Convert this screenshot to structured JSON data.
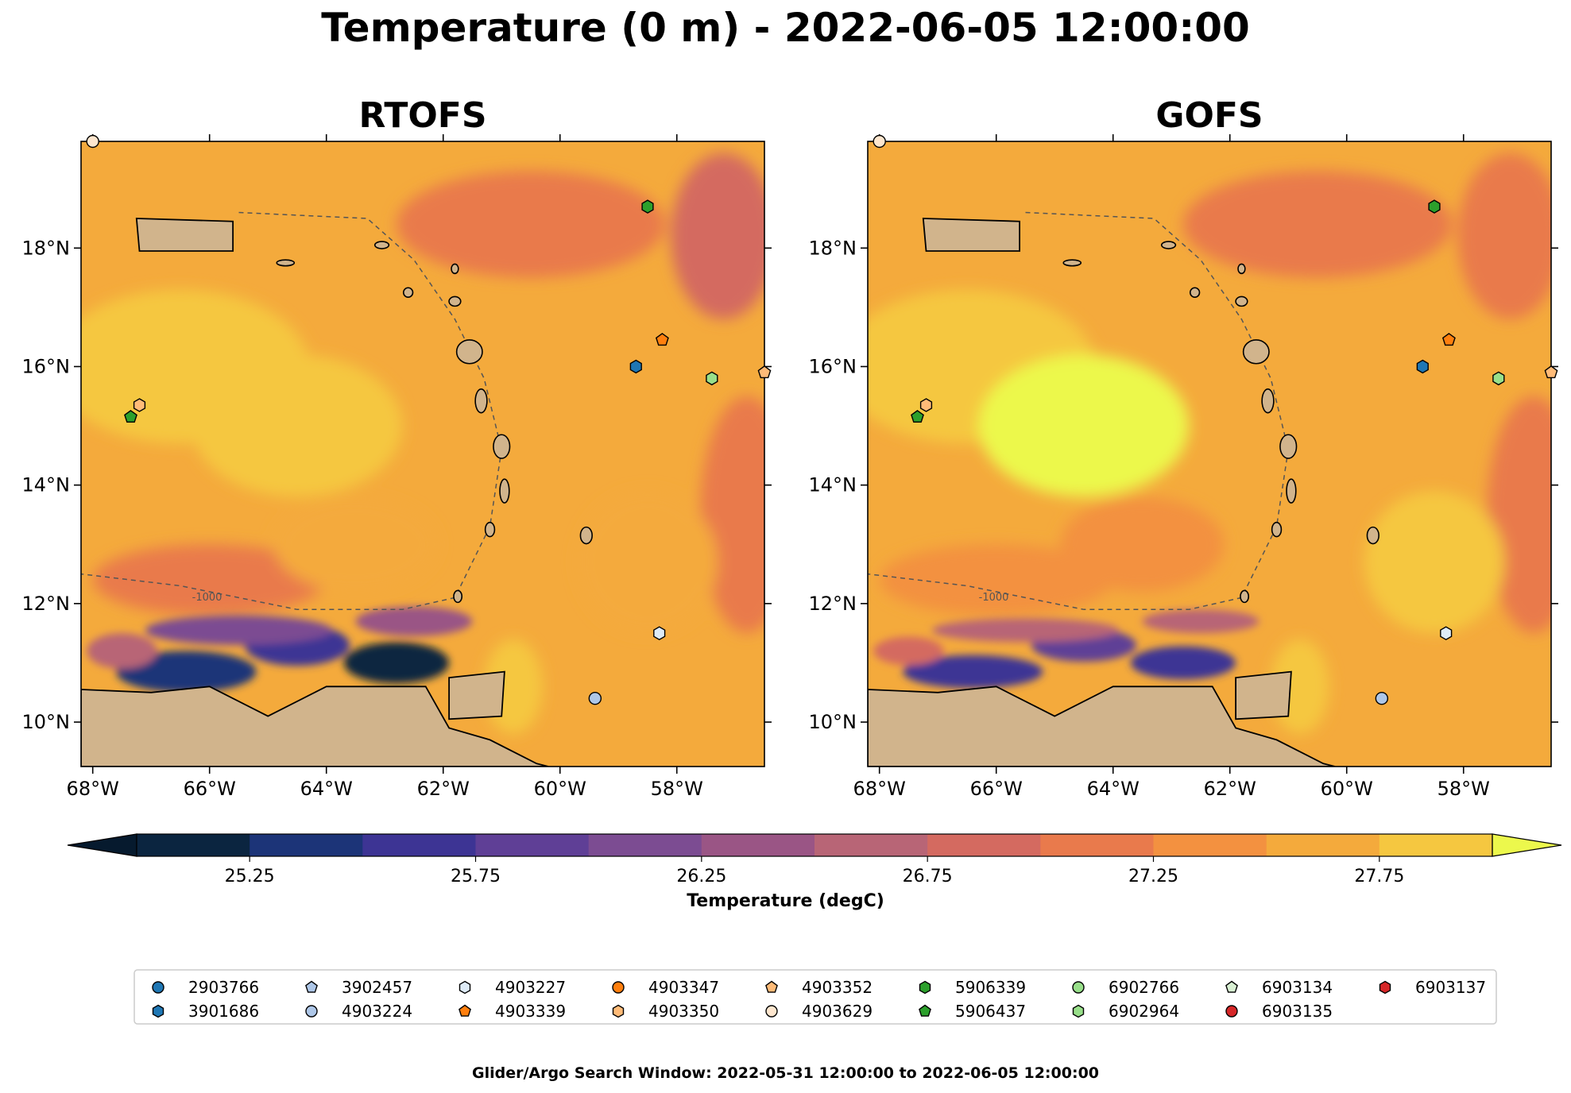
{
  "figure": {
    "suptitle": "Temperature (0 m) - 2022-06-05 12:00:00",
    "footer": "Glider/Argo Search Window: 2022-05-31 12:00:00 to 2022-06-05 12:00:00"
  },
  "chart_data": {
    "type": "heatmap",
    "panels": [
      {
        "title": "RTOFS",
        "xlim": [
          -68.2,
          -56.5
        ],
        "ylim": [
          9.25,
          19.8
        ],
        "xticks": [
          "68°W",
          "66°W",
          "64°W",
          "62°W",
          "60°W",
          "58°W"
        ],
        "xtick_values": [
          -68,
          -66,
          -64,
          -62,
          -60,
          -58
        ],
        "yticks": [
          "10°N",
          "12°N",
          "14°N",
          "16°N",
          "18°N"
        ],
        "ytick_values": [
          10,
          12,
          14,
          16,
          18
        ]
      },
      {
        "title": "GOFS",
        "xlim": [
          -68.2,
          -56.5
        ],
        "ylim": [
          9.25,
          19.8
        ],
        "xticks": [
          "68°W",
          "66°W",
          "64°W",
          "62°W",
          "60°W",
          "58°W"
        ],
        "xtick_values": [
          -68,
          -66,
          -64,
          -62,
          -60,
          -58
        ],
        "yticks": [
          "10°N",
          "12°N",
          "14°N",
          "16°N",
          "18°N"
        ],
        "ytick_values": [
          10,
          12,
          14,
          16,
          18
        ]
      }
    ],
    "bathymetry_contour_label": "-1000",
    "colorbar": {
      "label": "Temperature (degC)",
      "range": [
        25.0,
        28.0
      ],
      "step": 0.25,
      "extend": "both",
      "ticks": [
        "25.25",
        "25.75",
        "26.25",
        "26.75",
        "27.25",
        "27.75"
      ],
      "tick_values": [
        25.25,
        25.75,
        26.25,
        26.75,
        27.25,
        27.75
      ],
      "colors": [
        "#0b2540",
        "#1c3478",
        "#3d3494",
        "#5f3f96",
        "#7c4c92",
        "#9a5585",
        "#b86576",
        "#d46a60",
        "#e97a4c",
        "#f39140",
        "#f4aa3c",
        "#f5c740"
      ],
      "under_color": "#061a2e",
      "over_color": "#ecf84c"
    },
    "floats": [
      {
        "id": "2903766",
        "color": "#1f77b4",
        "marker": "circle",
        "lon": null,
        "lat": null
      },
      {
        "id": "3901686",
        "color": "#1f77b4",
        "marker": "hexagon",
        "lon": -58.7,
        "lat": 16.0
      },
      {
        "id": "3902457",
        "color": "#aec7e8",
        "marker": "pentagon",
        "lon": null,
        "lat": null
      },
      {
        "id": "4903224",
        "color": "#aec7e8",
        "marker": "circle",
        "lon": -59.4,
        "lat": 10.4
      },
      {
        "id": "4903227",
        "color": "#deebf7",
        "marker": "hexagon",
        "lon": -58.3,
        "lat": 11.5
      },
      {
        "id": "4903339",
        "color": "#ff7f0e",
        "marker": "pentagon",
        "lon": -58.25,
        "lat": 16.45
      },
      {
        "id": "4903347",
        "color": "#ff7f0e",
        "marker": "circle",
        "lon": null,
        "lat": null
      },
      {
        "id": "4903350",
        "color": "#ffbb78",
        "marker": "hexagon",
        "lon": -67.2,
        "lat": 15.35
      },
      {
        "id": "4903352",
        "color": "#ffbb78",
        "marker": "pentagon",
        "lon": -56.5,
        "lat": 15.9
      },
      {
        "id": "4903629",
        "color": "#fee6ce",
        "marker": "circle",
        "lon": -68.0,
        "lat": 19.8
      },
      {
        "id": "5906339",
        "color": "#2ca02c",
        "marker": "hexagon",
        "lon": -58.5,
        "lat": 18.7
      },
      {
        "id": "5906437",
        "color": "#2ca02c",
        "marker": "pentagon",
        "lon": -67.35,
        "lat": 15.15
      },
      {
        "id": "6902766",
        "color": "#98df8a",
        "marker": "circle",
        "lon": null,
        "lat": null
      },
      {
        "id": "6902964",
        "color": "#98df8a",
        "marker": "hexagon",
        "lon": -57.4,
        "lat": 15.8
      },
      {
        "id": "6903134",
        "color": "#d9f0d3",
        "marker": "pentagon",
        "lon": null,
        "lat": null
      },
      {
        "id": "6903135",
        "color": "#d62728",
        "marker": "circle",
        "lon": null,
        "lat": null
      },
      {
        "id": "6903137",
        "color": "#d62728",
        "marker": "hexagon",
        "lon": null,
        "lat": null
      }
    ]
  }
}
